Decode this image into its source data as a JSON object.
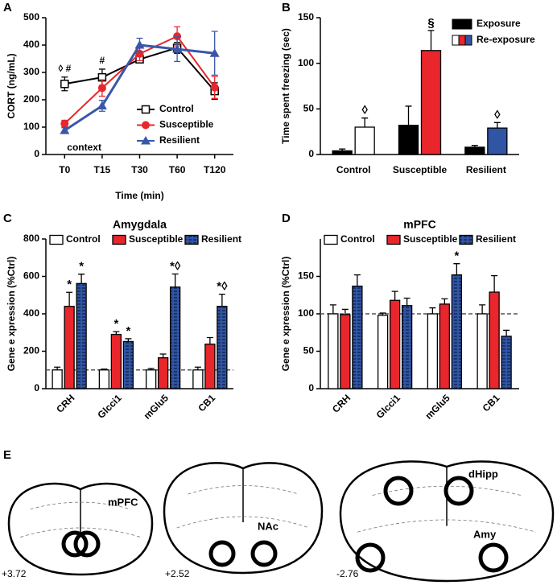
{
  "chart_data": [
    {
      "type": "line",
      "label": "A",
      "y_label": "CORT (ng/mL)",
      "x_label": "Time (min)",
      "annotation": "context",
      "categories": [
        "T0",
        "T15",
        "T30",
        "T60",
        "T120"
      ],
      "ylim": [
        0,
        500
      ],
      "yticks": [
        0,
        100,
        200,
        300,
        400,
        500
      ],
      "legend": "lower right",
      "series": [
        {
          "name": "Control",
          "color": "#000000",
          "marker": "square",
          "values": [
            258,
            282,
            348,
            390,
            232
          ],
          "errors": [
            25,
            30,
            10,
            20,
            30
          ],
          "annotations": [
            "◊ #",
            "#",
            null,
            null,
            null
          ]
        },
        {
          "name": "Susceptible",
          "color": "#e8262b",
          "marker": "circle",
          "values": [
            113,
            243,
            368,
            432,
            245
          ],
          "errors": [
            12,
            30,
            25,
            35,
            40
          ]
        },
        {
          "name": "Resilient",
          "color": "#3a57a7",
          "marker": "triangle",
          "values": [
            88,
            178,
            400,
            385,
            370
          ],
          "errors": [
            10,
            20,
            25,
            45,
            80
          ]
        }
      ]
    },
    {
      "type": "bar",
      "label": "B",
      "y_label": "Time spent freezing  (sec)",
      "categories": [
        "Control",
        "Susceptible",
        "Resilient"
      ],
      "ylim": [
        0,
        150
      ],
      "yticks": [
        0,
        50,
        100,
        150
      ],
      "legend": "upper right",
      "series": [
        {
          "name": "Exposure",
          "color": "#000000",
          "values": [
            4,
            32,
            8
          ],
          "errors": [
            2,
            21,
            2
          ]
        },
        {
          "name": "Re-exposure",
          "colors": [
            "#ffffff",
            "#e8262b",
            "#2f55a4"
          ],
          "values": [
            30,
            114,
            29
          ],
          "errors": [
            10,
            22,
            6
          ],
          "annotations": [
            "◊",
            "§",
            "◊"
          ]
        }
      ]
    },
    {
      "type": "bar",
      "label": "C",
      "title": "Amygdala",
      "y_label": "Gene e xpression (%Ctrl)",
      "categories": [
        "CRH",
        "Glcci1",
        "mGlu5",
        "CB1"
      ],
      "ylim": [
        0,
        800
      ],
      "yticks": [
        0,
        200,
        400,
        600,
        800
      ],
      "legend": "top",
      "reference_line": 100,
      "series": [
        {
          "name": "Control",
          "color": "#ffffff",
          "values": [
            100,
            100,
            100,
            100
          ],
          "errors": [
            15,
            5,
            8,
            15
          ]
        },
        {
          "name": "Susceptible",
          "color": "#e8262b",
          "values": [
            440,
            290,
            165,
            238
          ],
          "errors": [
            75,
            15,
            20,
            35
          ],
          "annotations": [
            "*",
            "*",
            null,
            null
          ]
        },
        {
          "name": "Resilient",
          "color": "#2f55a4",
          "hatch": true,
          "values": [
            562,
            252,
            543,
            440
          ],
          "errors": [
            50,
            15,
            70,
            65
          ],
          "annotations": [
            "*",
            "*",
            "*◊",
            "*◊"
          ]
        }
      ]
    },
    {
      "type": "bar",
      "label": "D",
      "title": "mPFC",
      "y_label": "Gene e xpression (%Ctrl)",
      "categories": [
        "CRH",
        "Glcci1",
        "mGlu5",
        "CB1"
      ],
      "ylim": [
        0,
        200
      ],
      "yticks": [
        0,
        50,
        100,
        150
      ],
      "legend": "top",
      "reference_line": 100,
      "series": [
        {
          "name": "Control",
          "color": "#ffffff",
          "values": [
            100,
            98,
            100,
            100
          ],
          "errors": [
            12,
            3,
            8,
            12
          ]
        },
        {
          "name": "Susceptible",
          "color": "#e8262b",
          "values": [
            99,
            118,
            113,
            129
          ],
          "errors": [
            7,
            12,
            7,
            22
          ]
        },
        {
          "name": "Resilient",
          "color": "#2f55a4",
          "hatch": true,
          "values": [
            137,
            111,
            152,
            70
          ],
          "errors": [
            15,
            10,
            15,
            8
          ],
          "annotations": [
            null,
            null,
            "*",
            null
          ]
        }
      ]
    }
  ],
  "panel_e": {
    "label": "E",
    "sections": [
      {
        "coordinate": "+3.72",
        "regions": [
          "mPFC"
        ]
      },
      {
        "coordinate": "+2.52",
        "regions": [
          "NAc"
        ]
      },
      {
        "coordinate": "-2.76",
        "regions": [
          "dHipp",
          "Amy"
        ]
      }
    ]
  }
}
